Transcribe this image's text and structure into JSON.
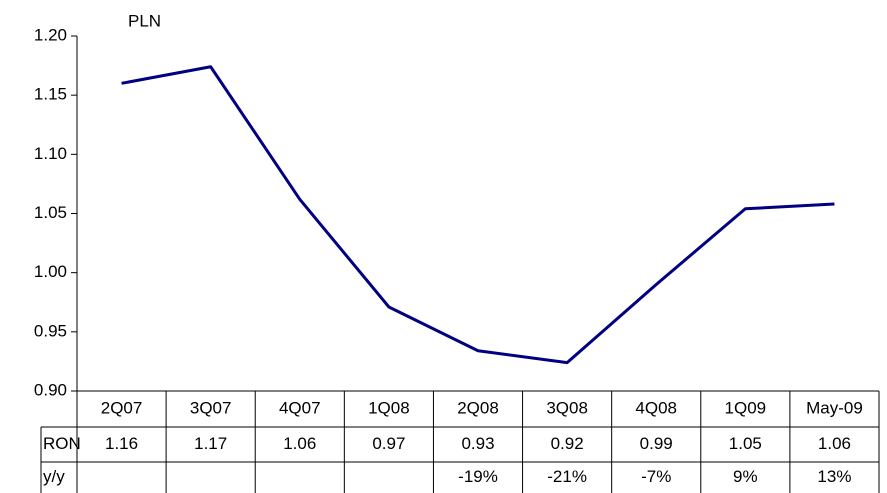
{
  "chart_data": {
    "type": "line",
    "annotation": "PLN",
    "categories": [
      "2Q07",
      "3Q07",
      "4Q07",
      "1Q08",
      "2Q08",
      "3Q08",
      "4Q08",
      "1Q09",
      "May-09"
    ],
    "series": [
      {
        "name": "RON",
        "color": "#000080",
        "values": [
          1.16,
          1.174,
          1.062,
          0.971,
          0.934,
          0.924,
          0.99,
          1.054,
          1.058
        ],
        "value_labels": [
          "1.16",
          "1.17",
          "1.06",
          "0.97",
          "0.93",
          "0.92",
          "0.99",
          "1.05",
          "1.06"
        ]
      }
    ],
    "yoy": {
      "name": "y/y",
      "values": [
        null,
        null,
        null,
        null,
        -19,
        -21,
        -7,
        9,
        13
      ],
      "value_labels": [
        null,
        null,
        null,
        null,
        "-19%",
        "-21%",
        "-7%",
        "9%",
        "13%"
      ]
    },
    "ylim": [
      0.9,
      1.2
    ],
    "yticks": [
      {
        "value": 0.9,
        "label": "0.90"
      },
      0.95,
      {
        "value": 1.0,
        "label": "1.00"
      },
      1.05,
      {
        "value": 1.1,
        "label": "1.10"
      },
      1.15,
      {
        "value": 1.2,
        "label": "1.20"
      }
    ]
  }
}
